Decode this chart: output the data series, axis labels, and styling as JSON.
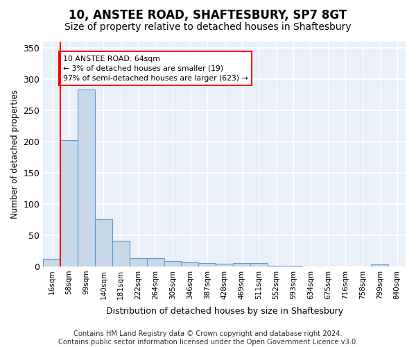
{
  "title1": "10, ANSTEE ROAD, SHAFTESBURY, SP7 8GT",
  "title2": "Size of property relative to detached houses in Shaftesbury",
  "xlabel": "Distribution of detached houses by size in Shaftesbury",
  "ylabel": "Number of detached properties",
  "footnote": "Contains HM Land Registry data © Crown copyright and database right 2024.\nContains public sector information licensed under the Open Government Licence v3.0.",
  "bin_labels": [
    "16sqm",
    "58sqm",
    "99sqm",
    "140sqm",
    "181sqm",
    "222sqm",
    "264sqm",
    "305sqm",
    "346sqm",
    "387sqm",
    "428sqm",
    "469sqm",
    "511sqm",
    "552sqm",
    "593sqm",
    "634sqm",
    "675sqm",
    "716sqm",
    "758sqm",
    "799sqm",
    "840sqm"
  ],
  "bar_values": [
    12,
    202,
    283,
    75,
    41,
    13,
    13,
    9,
    7,
    6,
    4,
    6,
    6,
    1,
    1,
    0,
    0,
    0,
    0,
    3,
    0
  ],
  "bar_color": "#c8d8e8",
  "bar_edge_color": "#5b9bd5",
  "red_line_x": 0.5,
  "annotation_text": "10 ANSTEE ROAD: 64sqm\n← 3% of detached houses are smaller (19)\n97% of semi-detached houses are larger (623) →",
  "annotation_box_color": "white",
  "annotation_box_edge_color": "red",
  "ylim": [
    0,
    360
  ],
  "yticks": [
    0,
    50,
    100,
    150,
    200,
    250,
    300,
    350
  ],
  "plot_bg_color": "#eaf0f8",
  "grid_color": "white",
  "title1_fontsize": 12,
  "title2_fontsize": 10,
  "footnote_fontsize": 7.2
}
